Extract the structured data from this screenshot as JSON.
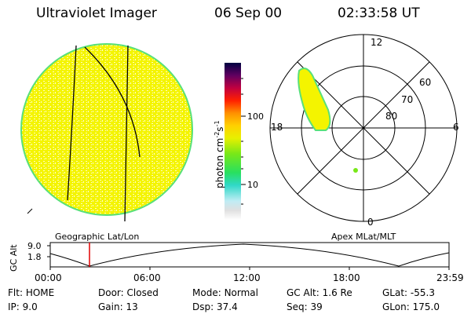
{
  "header": {
    "title": "Ultraviolet Imager",
    "date": "06 Sep 00",
    "time": "02:33:58 UT"
  },
  "colorbar": {
    "unit_label": "photon cm",
    "unit_exp1": "-2",
    "unit_s": "s",
    "unit_exp2": "-1",
    "ticks": [
      "100",
      "10"
    ]
  },
  "polar_plot": {
    "mlt_labels": {
      "top": "12",
      "left": "18",
      "right": "6",
      "bottom": "0"
    },
    "lat_labels": [
      "60",
      "70",
      "80"
    ]
  },
  "timeline": {
    "left_label": "Geographic Lat/Lon",
    "right_label": "Apex MLat/MLT",
    "axis_title": "GC Alt",
    "y_ticks": [
      "9.0",
      "1.8"
    ],
    "x_ticks": [
      "00:00",
      "06:00",
      "12:00",
      "18:00",
      "23:59"
    ],
    "marker_color": "#e00000"
  },
  "status": {
    "row1": [
      {
        "label": "Flt:",
        "value": "HOME"
      },
      {
        "label": "Door:",
        "value": "Closed"
      },
      {
        "label": "Mode:",
        "value": "Normal"
      },
      {
        "label": "GC Alt:",
        "value": "1.6 Re"
      },
      {
        "label": "GLat:",
        "value": "-55.3"
      }
    ],
    "row2": [
      {
        "label": "IP:",
        "value": "9.0"
      },
      {
        "label": "Gain:",
        "value": "13"
      },
      {
        "label": "Dsp:",
        "value": "37.4"
      },
      {
        "label": "Seq:",
        "value": "39"
      },
      {
        "label": "GLon:",
        "value": "175.0"
      }
    ]
  },
  "colors": {
    "fill": "#f4f400",
    "edge": "#58e07a",
    "grid": "#000000"
  }
}
